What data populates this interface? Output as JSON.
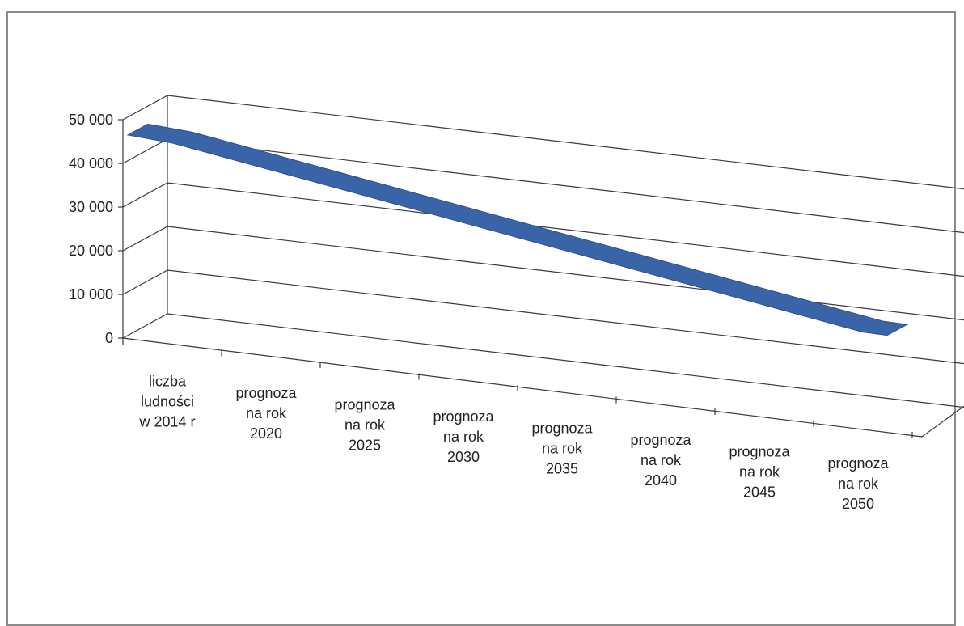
{
  "chart_data": {
    "type": "line",
    "title": "",
    "xlabel": "",
    "ylabel": "",
    "ylim": [
      0,
      50000
    ],
    "yticks": [
      "0",
      "10 000",
      "20 000",
      "30 000",
      "40 000",
      "50 000"
    ],
    "categories": [
      [
        "liczba",
        "ludności",
        "w 2014 r"
      ],
      [
        "prognoza",
        "na rok",
        "2020"
      ],
      [
        "prognoza",
        "na rok",
        "2025"
      ],
      [
        "prognoza",
        "na rok",
        "2030"
      ],
      [
        "prognoza",
        "na rok",
        "2035"
      ],
      [
        "prognoza",
        "na rok",
        "2040"
      ],
      [
        "prognoza",
        "na rok",
        "2045"
      ],
      [
        "prognoza",
        "na rok",
        "2050"
      ]
    ],
    "series": [
      {
        "values": [
          46000,
          42500,
          39000,
          35500,
          32000,
          28500,
          25000,
          21500
        ],
        "color": "#3a64a8"
      }
    ],
    "grid": true,
    "legend": "none"
  }
}
